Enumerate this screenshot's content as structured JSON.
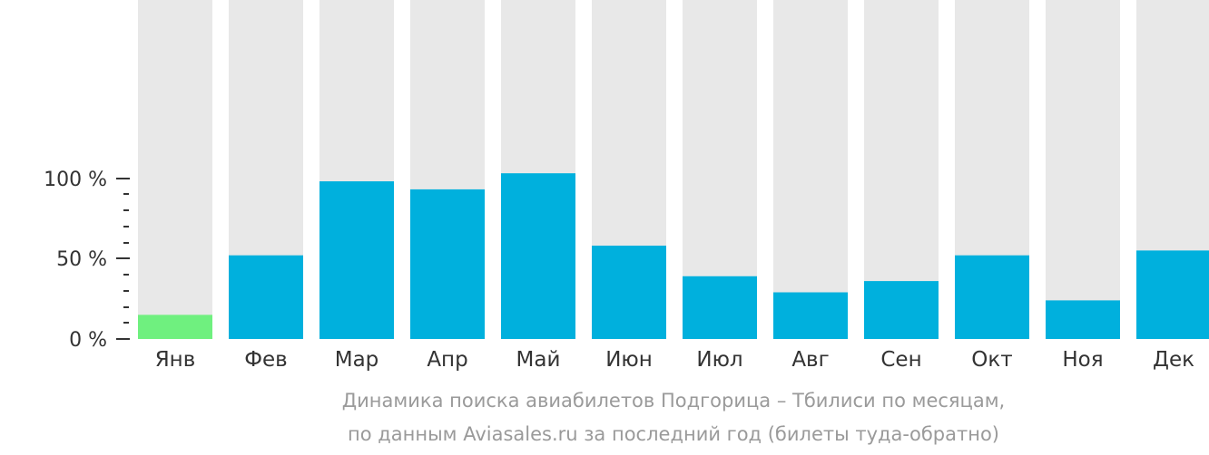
{
  "chart_data": {
    "type": "bar",
    "categories": [
      "Янв",
      "Фев",
      "Мар",
      "Апр",
      "Май",
      "Июн",
      "Июл",
      "Авг",
      "Сен",
      "Окт",
      "Ноя",
      "Дек"
    ],
    "values": [
      15,
      52,
      98,
      93,
      103,
      58,
      39,
      29,
      36,
      52,
      24,
      55
    ],
    "max_value": 103,
    "highlight_index": 0,
    "yticks": [
      {
        "value": 100,
        "label": "100 %"
      },
      {
        "value": 50,
        "label": "50 %"
      },
      {
        "value": 0,
        "label": "0 %"
      }
    ],
    "minor_tick_step": 10,
    "ylim": [
      0,
      100
    ],
    "grid": false,
    "colors": {
      "bar": "#00b0dd",
      "highlight": "#6ff07f",
      "background_bar": "#e8e8e8",
      "axis_text": "#333333",
      "caption": "#9a9a9a"
    }
  },
  "caption": {
    "line1": "Динамика поиска авиабилетов Подгорица – Тбилиси по месяцам,",
    "line2": "по данным Aviasales.ru за последний год (билеты туда-обратно)"
  }
}
